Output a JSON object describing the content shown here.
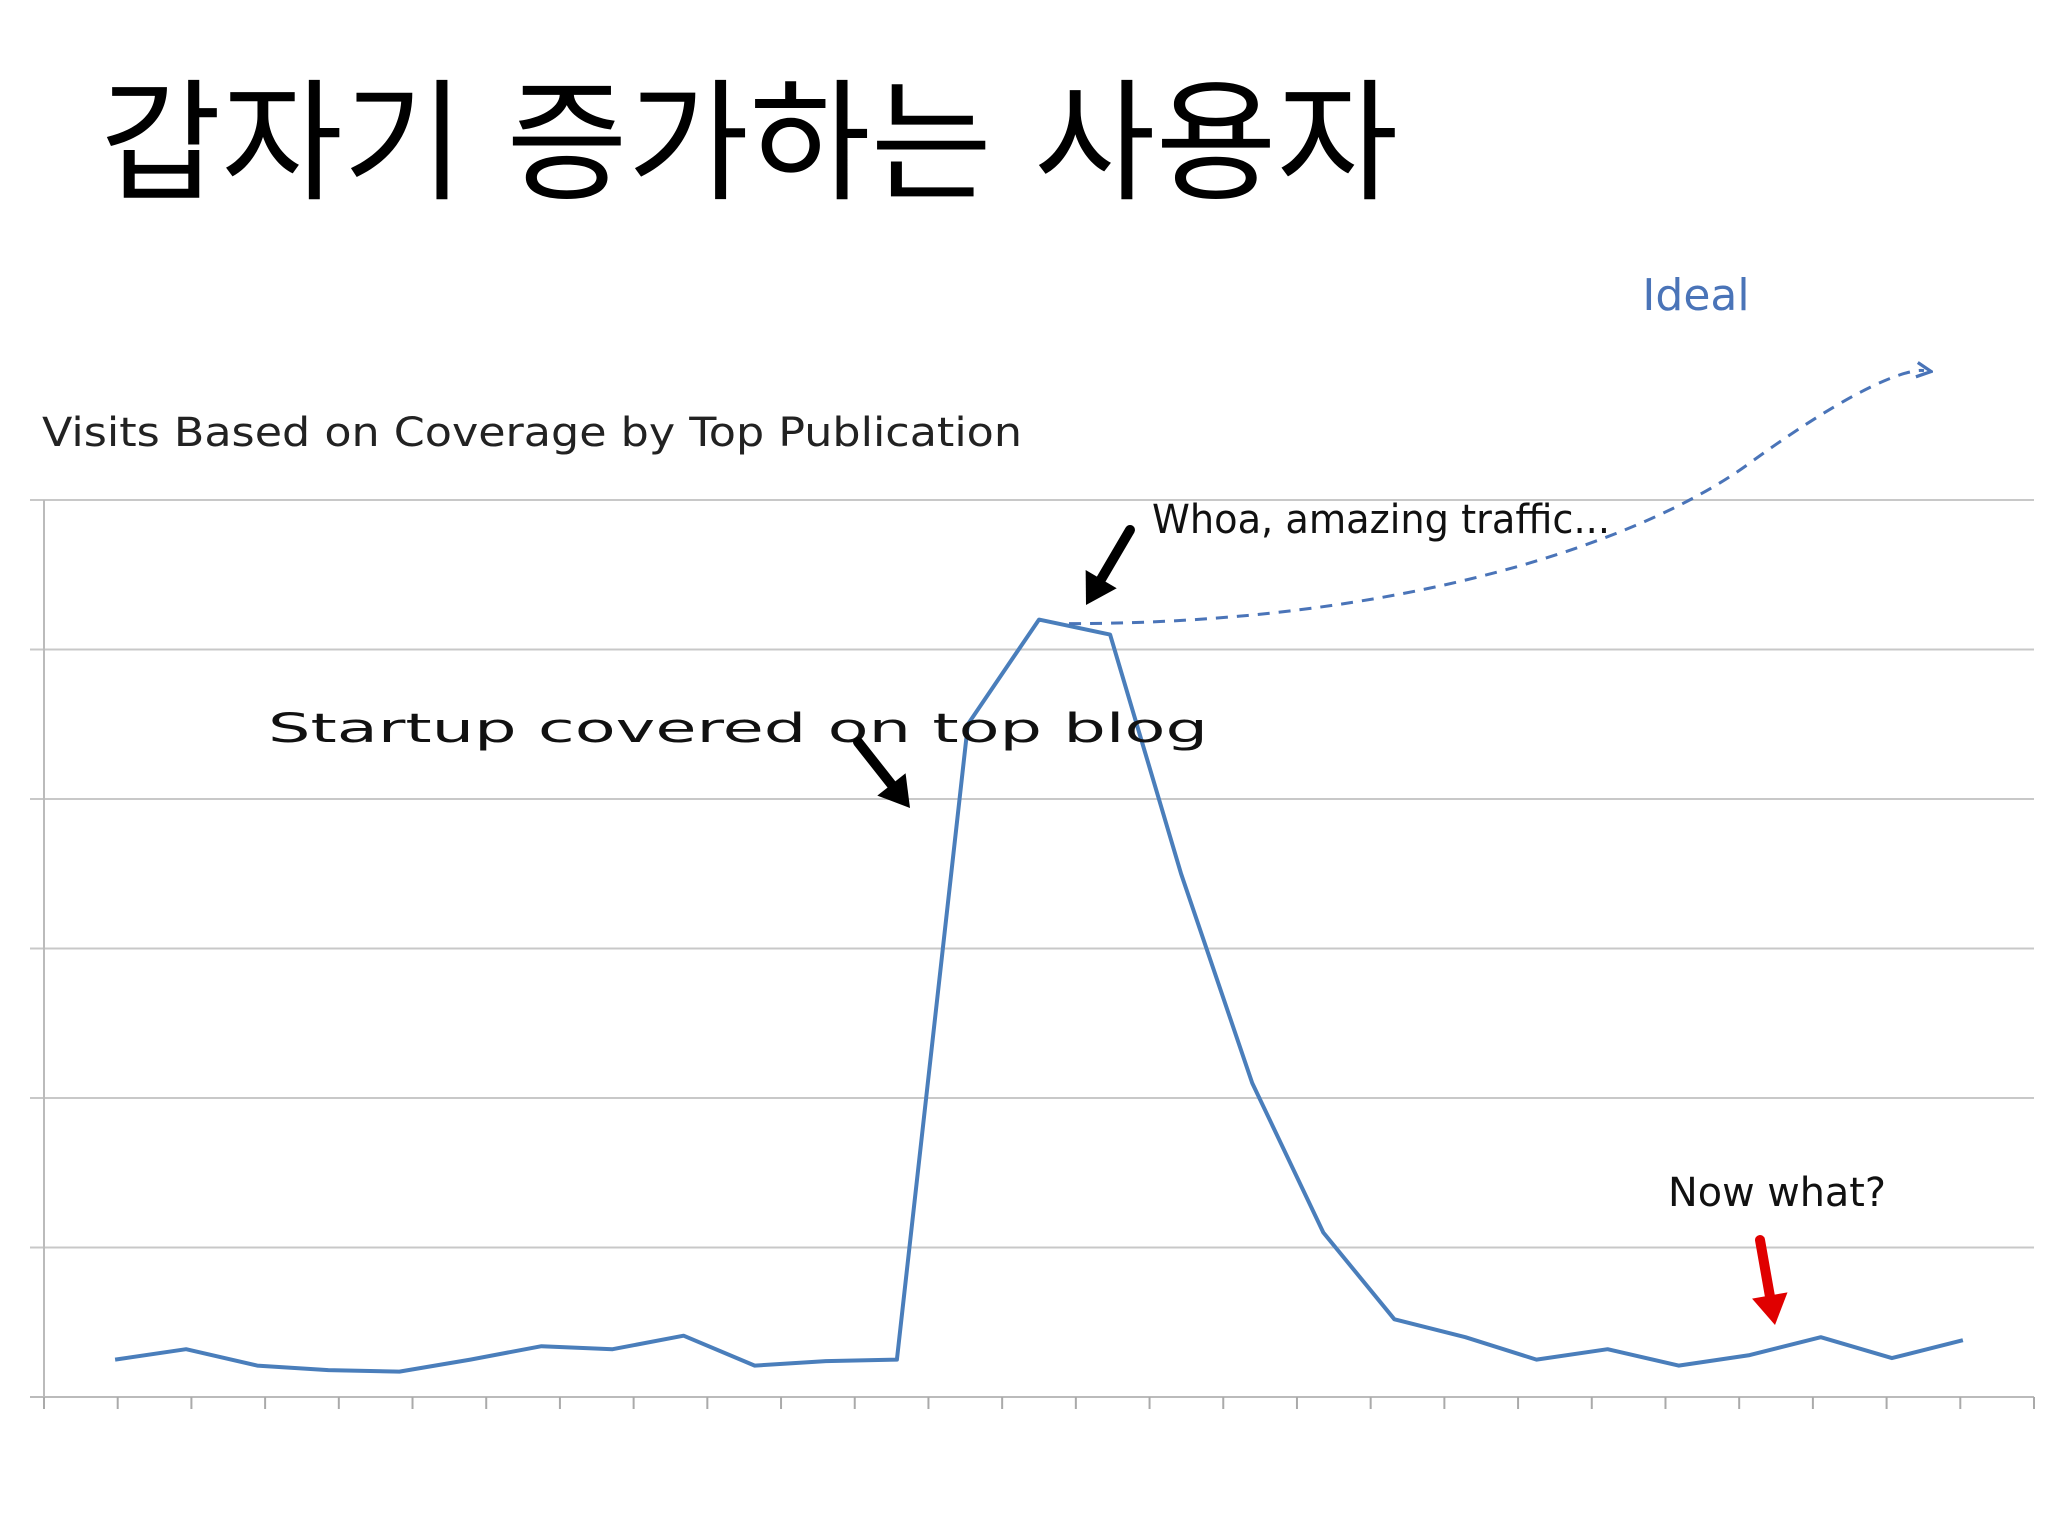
{
  "slide": {
    "title": "갑자기 증가하는 사용자"
  },
  "chart_data": {
    "type": "line",
    "title": "Visits Based on Coverage by Top Publication",
    "xlabel": "",
    "ylabel": "",
    "x": [
      1,
      2,
      3,
      4,
      5,
      6,
      7,
      8,
      9,
      10,
      11,
      12,
      13,
      14,
      15,
      16,
      17,
      18,
      19,
      20,
      21,
      22,
      23,
      24,
      25,
      26,
      27
    ],
    "ylim": [
      0,
      6
    ],
    "grid": true,
    "series": [
      {
        "values": [
          0.25,
          0.32,
          0.21,
          0.18,
          0.17,
          0.25,
          0.34,
          0.32,
          0.41,
          0.21,
          0.24,
          0.25,
          4.5,
          5.2,
          5.1,
          3.5,
          2.1,
          1.1,
          0.52,
          0.4,
          0.25,
          0.32,
          0.21,
          0.28,
          0.4,
          0.26,
          0.38
        ],
        "color": "#4a7ebb"
      }
    ],
    "ideal_projection": {
      "label": "Ideal",
      "color": "#4a74b8",
      "style": "dashed"
    },
    "annotations": [
      {
        "text": "Startup covered on top blog",
        "points_to_x": 12.3,
        "arrow_color": "#000000"
      },
      {
        "text": "Whoa, amazing traffic...",
        "points_to_x": 14.6,
        "arrow_color": "#000000"
      },
      {
        "text": "Now what?",
        "points_to_x": 24.4,
        "arrow_color": "#e00000"
      }
    ]
  }
}
